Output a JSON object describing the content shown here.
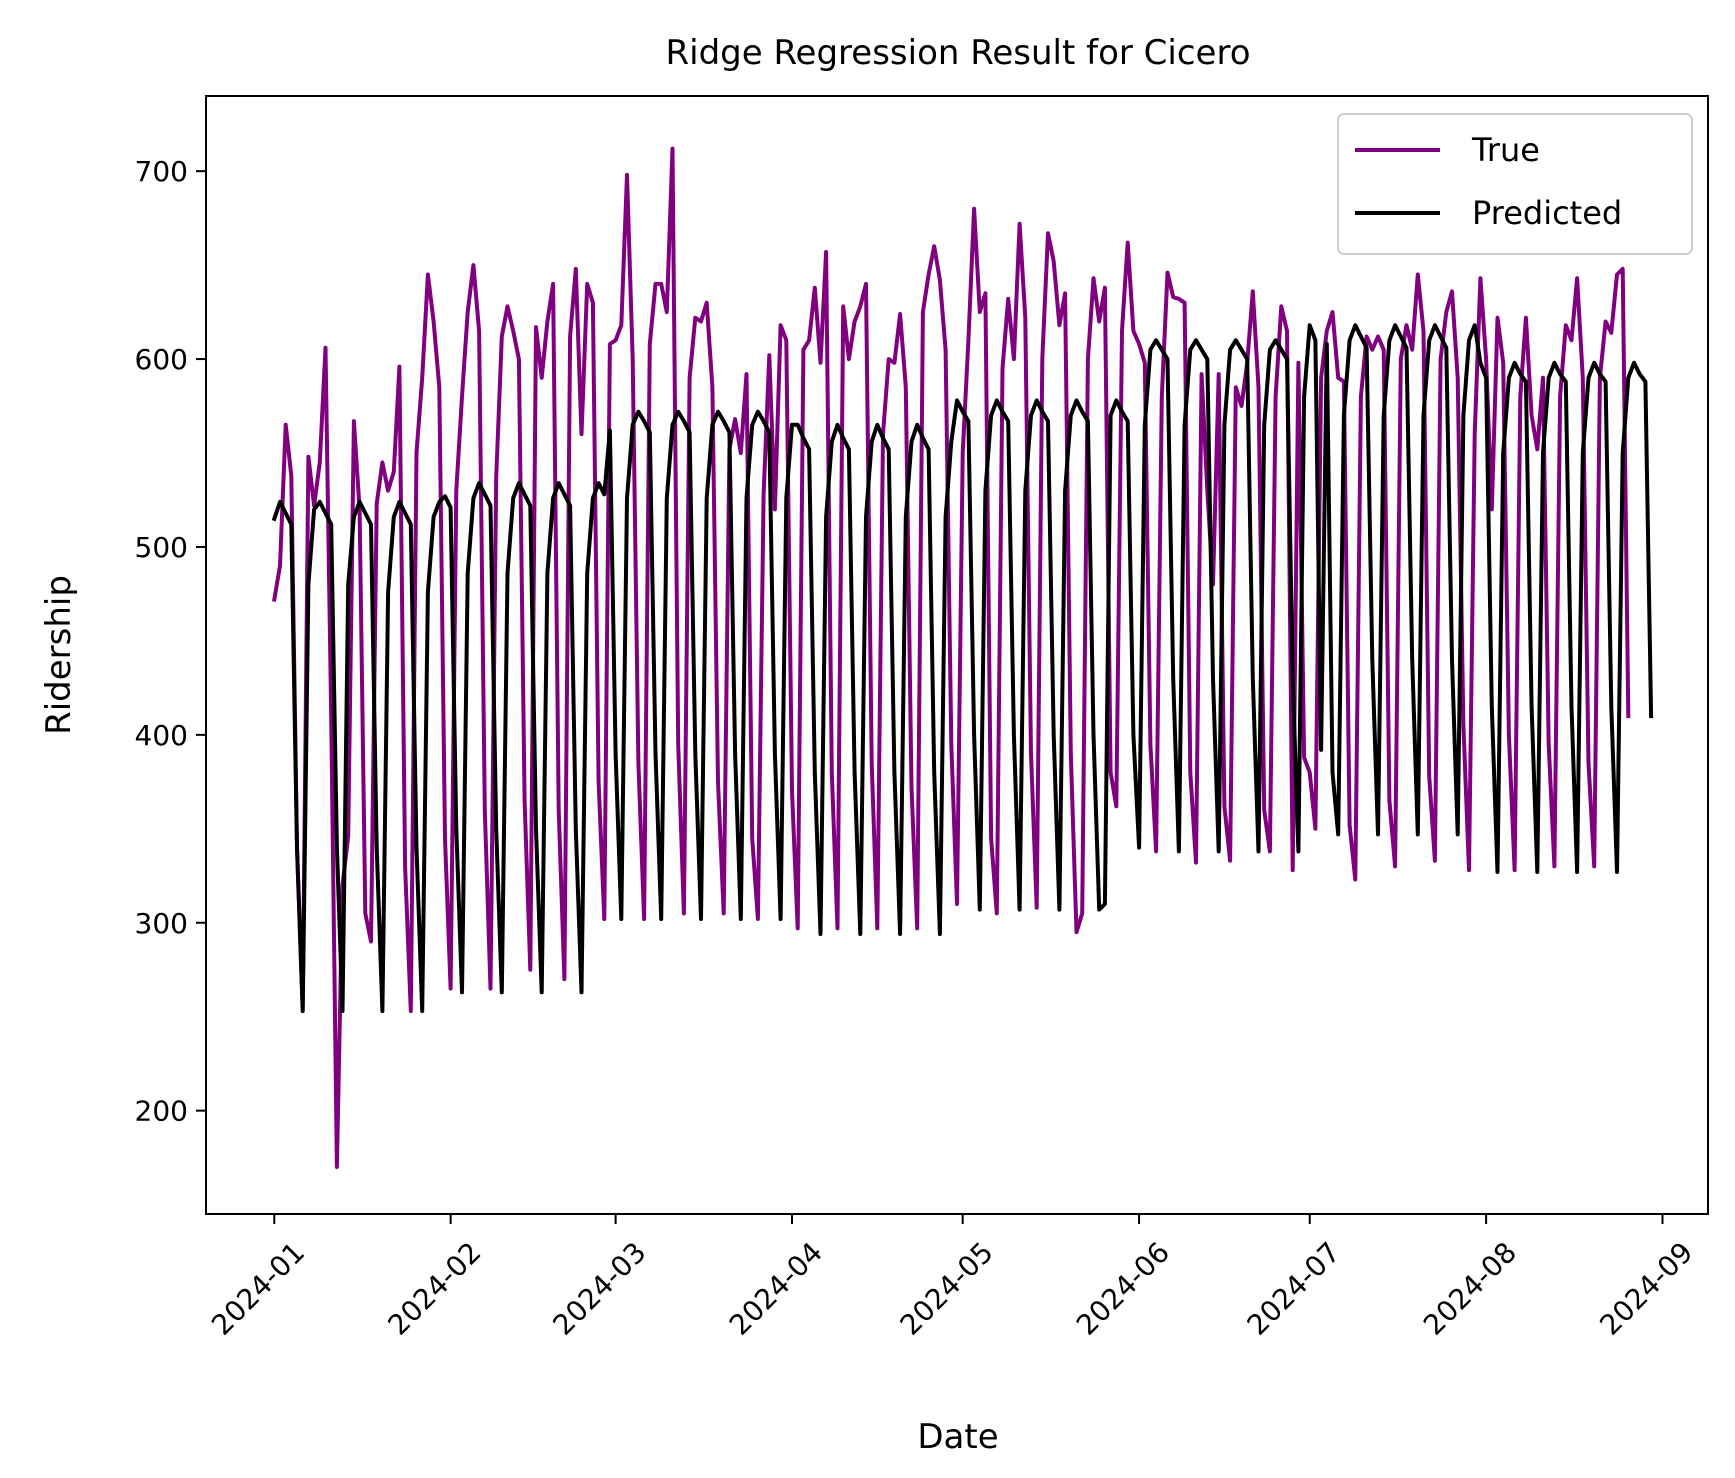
{
  "chart_data": {
    "type": "line",
    "title": "Ridge Regression Result for Cicero",
    "xlabel": "Date",
    "ylabel": "Ridership",
    "x_ticks": [
      "2024-01",
      "2024-02",
      "2024-03",
      "2024-04",
      "2024-05",
      "2024-06",
      "2024-07",
      "2024-08",
      "2024-09"
    ],
    "y_ticks": [
      200,
      300,
      400,
      500,
      600,
      700
    ],
    "xlim": [
      "2023-12-20",
      "2024-09-09"
    ],
    "ylim": [
      145,
      740
    ],
    "x_start": "2024-01-01",
    "legend_position": "top-right",
    "grid": false,
    "series": [
      {
        "name": "True",
        "color": "#800080",
        "values": [
          472,
          490,
          565,
          538,
          340,
          255,
          548,
          522,
          545,
          606,
          410,
          170,
          320,
          346,
          567,
          520,
          305,
          290,
          523,
          545,
          530,
          540,
          596,
          330,
          253,
          550,
          590,
          645,
          620,
          585,
          345,
          265,
          530,
          580,
          625,
          650,
          615,
          360,
          265,
          537,
          612,
          628,
          615,
          600,
          365,
          275,
          617,
          590,
          620,
          640,
          360,
          270,
          612,
          648,
          560,
          640,
          630,
          375,
          302,
          608,
          610,
          618,
          698,
          600,
          385,
          302,
          608,
          640,
          640,
          625,
          712,
          395,
          305,
          590,
          622,
          620,
          630,
          585,
          375,
          305,
          552,
          568,
          550,
          592,
          345,
          302,
          528,
          602,
          520,
          618,
          610,
          370,
          297,
          605,
          610,
          638,
          598,
          657,
          380,
          297,
          628,
          600,
          620,
          628,
          640,
          385,
          297,
          560,
          600,
          598,
          624,
          585,
          372,
          297,
          625,
          645,
          660,
          642,
          605,
          395,
          310,
          550,
          610,
          680,
          625,
          635,
          345,
          305,
          595,
          632,
          600,
          672,
          622,
          390,
          308,
          600,
          667,
          652,
          618,
          635,
          390,
          295,
          305,
          600,
          643,
          620,
          638,
          380,
          362,
          615,
          662,
          615,
          608,
          598,
          395,
          338,
          580,
          646,
          633,
          632,
          630,
          380,
          332,
          592,
          530,
          480,
          592,
          362,
          333,
          585,
          575,
          598,
          636,
          585,
          360,
          338,
          580,
          628,
          615,
          328,
          598,
          388,
          380,
          350,
          590,
          615,
          625,
          590,
          588,
          352,
          323,
          580,
          612,
          605,
          612,
          605,
          365,
          330,
          600,
          618,
          605,
          645,
          615,
          378,
          333,
          600,
          625,
          636,
          590,
          405,
          328,
          560,
          643,
          600,
          520,
          622,
          598,
          400,
          328,
          580,
          622,
          570,
          552,
          590,
          395,
          330,
          580,
          618,
          610,
          643,
          590,
          385,
          330,
          590,
          620,
          614,
          645,
          648,
          410
        ]
      },
      {
        "name": "Predicted",
        "color": "#000000",
        "values": [
          515,
          524,
          518,
          512,
          340,
          253,
          480,
          520,
          524,
          518,
          512,
          340,
          253,
          480,
          516,
          524,
          518,
          512,
          340,
          253,
          476,
          516,
          524,
          518,
          512,
          340,
          253,
          476,
          516,
          524,
          527,
          521,
          350,
          263,
          486,
          526,
          534,
          528,
          522,
          350,
          263,
          486,
          526,
          534,
          528,
          522,
          350,
          263,
          486,
          526,
          534,
          528,
          522,
          350,
          263,
          486,
          526,
          534,
          528,
          562,
          390,
          302,
          526,
          565,
          572,
          567,
          561,
          390,
          302,
          526,
          565,
          572,
          567,
          561,
          390,
          302,
          526,
          565,
          572,
          567,
          561,
          390,
          302,
          526,
          565,
          572,
          567,
          561,
          390,
          302,
          526,
          565,
          565,
          558,
          552,
          380,
          294,
          516,
          556,
          565,
          558,
          552,
          380,
          294,
          516,
          556,
          565,
          558,
          552,
          380,
          294,
          516,
          556,
          565,
          558,
          552,
          380,
          294,
          516,
          556,
          578,
          572,
          567,
          400,
          307,
          530,
          570,
          578,
          572,
          567,
          400,
          307,
          530,
          570,
          578,
          572,
          567,
          400,
          307,
          530,
          570,
          578,
          572,
          567,
          400,
          307,
          310,
          570,
          578,
          572,
          567,
          400,
          340,
          565,
          605,
          610,
          605,
          600,
          430,
          338,
          565,
          605,
          610,
          605,
          600,
          430,
          338,
          565,
          605,
          610,
          605,
          600,
          430,
          338,
          565,
          605,
          610,
          605,
          600,
          430,
          338,
          580,
          618,
          610,
          392,
          608,
          380,
          347,
          570,
          610,
          618,
          612,
          606,
          440,
          347,
          570,
          610,
          618,
          612,
          606,
          440,
          347,
          570,
          610,
          618,
          612,
          606,
          440,
          347,
          570,
          610,
          618,
          598,
          590,
          415,
          327,
          550,
          590,
          598,
          592,
          588,
          415,
          327,
          550,
          590,
          598,
          592,
          588,
          415,
          327,
          550,
          590,
          598,
          592,
          588,
          415,
          327,
          550,
          590,
          598,
          592,
          588,
          410
        ]
      }
    ]
  }
}
